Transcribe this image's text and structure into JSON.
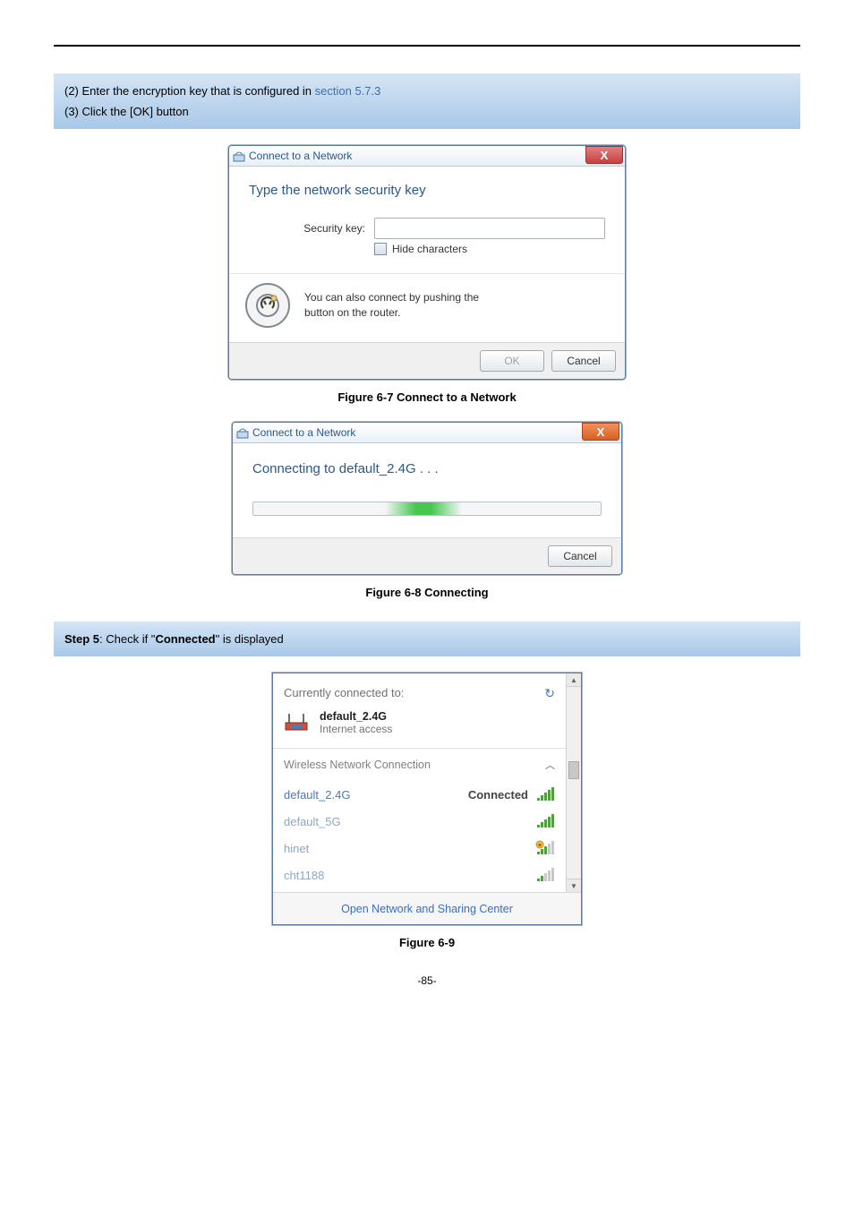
{
  "instructions": {
    "line1_prefix": "(2)  Enter the encryption key that is configured in ",
    "line1_link": "section 5.7.3",
    "line2": "(3)  Click the [OK] button"
  },
  "dialog1": {
    "title": "Connect to a Network",
    "heading": "Type the network security key",
    "security_label": "Security key:",
    "hide_chars": "Hide characters",
    "wps_line1": "You can also connect by pushing the",
    "wps_line2": "button on the router.",
    "ok": "OK",
    "cancel": "Cancel",
    "close_glyph": "X",
    "style": {
      "border_color": "#5a7ca0",
      "title_color": "#2b5888",
      "heading_color": "#2b5888",
      "body_text_color": "#333333"
    }
  },
  "fig1_caption": "Figure 6-7 Connect to a Network",
  "dialog2": {
    "title": "Connect to a Network",
    "status": "Connecting to default_2.4G . . .",
    "cancel": "Cancel",
    "close_glyph": "X",
    "progress": {
      "segment_left_pct": 38,
      "segment_width_pct": 22,
      "color": "#46c850"
    }
  },
  "fig2_caption": "Figure 6-8 Connecting",
  "step5": {
    "prefix": "Step 5",
    "middle": ": Check if \"",
    "bold": "Connected",
    "suffix": "\" is displayed"
  },
  "flyout": {
    "header": "Currently connected to:",
    "current": {
      "name": "default_2.4G",
      "sub": "Internet access"
    },
    "wnc_label": "Wireless Network Connection",
    "networks": [
      {
        "name": "default_2.4G",
        "status": "Connected",
        "strength": 5,
        "secure": false,
        "name_color": "#4a7ab0"
      },
      {
        "name": "default_5G",
        "status": "",
        "strength": 5,
        "secure": false,
        "name_color": "#88a8c8"
      },
      {
        "name": "hinet",
        "status": "",
        "strength": 3,
        "secure": true,
        "name_color": "#88a8c8"
      },
      {
        "name": "cht1188",
        "status": "",
        "strength": 2,
        "secure": false,
        "name_color": "#88a8c8"
      }
    ],
    "footer_link": "Open Network and Sharing Center"
  },
  "fig3_caption": "Figure 6-9",
  "page_number": "-85-"
}
